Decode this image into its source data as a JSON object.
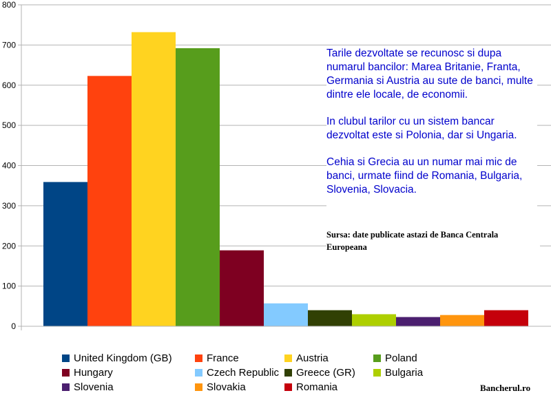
{
  "chart_data": {
    "type": "bar",
    "categories": [
      "United Kingdom (GB)",
      "France",
      "Austria",
      "Poland",
      "Hungary",
      "Czech Republic",
      "Greece (GR)",
      "Bulgaria",
      "Slovenia",
      "Slovakia",
      "Romania"
    ],
    "values": [
      359,
      623,
      732,
      692,
      189,
      57,
      40,
      30,
      23,
      28,
      40
    ],
    "colors": [
      "#004586",
      "#ff420e",
      "#ffd320",
      "#579d1c",
      "#7e0021",
      "#83caff",
      "#314004",
      "#aecf00",
      "#4b1f6f",
      "#ff950e",
      "#c5000b"
    ],
    "ylim": [
      0,
      800
    ],
    "yticks": [
      0,
      100,
      200,
      300,
      400,
      500,
      600,
      700,
      800
    ],
    "grid": true,
    "legend_position": "bottom",
    "annotation": {
      "paragraphs": [
        "Tarile dezvoltate se recunosc si dupa numarul bancilor: Marea Britanie, Franta, Germania si Austria au sute de banci, multe dintre ele locale, de economii.",
        "In clubul tarilor cu un sistem bancar dezvoltat este si Polonia, dar si Ungaria.",
        "Cehia si Grecia au un numar mai mic de banci, urmate fiind de Romania, Bulgaria, Slovenia, Slovacia."
      ],
      "source": "Sursa: date publicate astazi de Banca Centrala Europeana"
    },
    "brand": "Bancherul.ro"
  }
}
